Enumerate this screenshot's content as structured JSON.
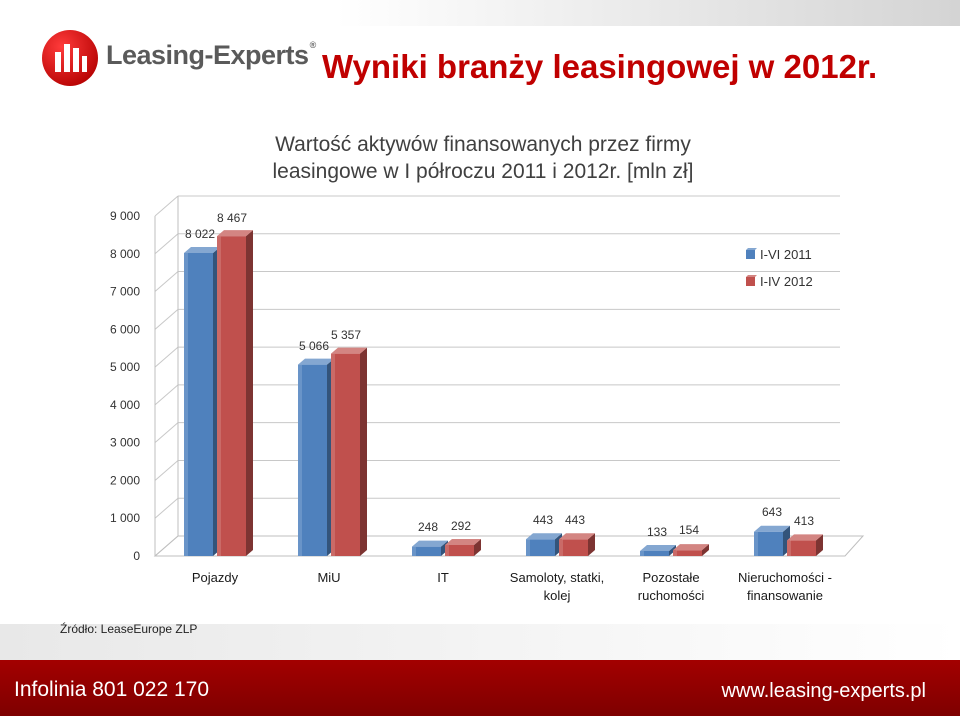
{
  "header": {
    "logo_text": "Leasing-Experts",
    "logo_reg": "®",
    "title": "Wyniki branży leasingowej w 2012r."
  },
  "chart_data": {
    "type": "bar",
    "title_lines": [
      "Wartość aktywów finansowanych przez firmy",
      "leasingowe w I półroczu 2011 i 2012r. [mln zł]"
    ],
    "categories": [
      [
        "Pojazdy"
      ],
      [
        "MiU"
      ],
      [
        "IT"
      ],
      [
        "Samoloty, statki,",
        "kolej"
      ],
      [
        "Pozostałe",
        "ruchomości"
      ],
      [
        "Nieruchomości -",
        "finansowanie"
      ]
    ],
    "series": [
      {
        "name": "I-VI 2011",
        "color": "#4f81bd",
        "values": [
          8022,
          5066,
          248,
          443,
          133,
          643
        ],
        "labels": [
          "8 022",
          "5 066",
          "248",
          "443",
          "133",
          "643"
        ]
      },
      {
        "name": "I-IV 2012",
        "color": "#c0504d",
        "values": [
          8467,
          5357,
          292,
          443,
          154,
          413
        ],
        "labels": [
          "8 467",
          "5 357",
          "292",
          "443",
          "154",
          "413"
        ]
      }
    ],
    "ylim": [
      0,
      9000
    ],
    "yticks": [
      0,
      1000,
      2000,
      3000,
      4000,
      5000,
      6000,
      7000,
      8000,
      9000
    ],
    "ytick_labels": [
      "0",
      "1 000",
      "2 000",
      "3 000",
      "4 000",
      "5 000",
      "6 000",
      "7 000",
      "8 000",
      "9 000"
    ],
    "grid": true,
    "legend": "top-right"
  },
  "source": "Źródło: LeaseEurope ZLP",
  "footer": {
    "left": "Infolinia 801 022 170",
    "right": "www.leasing-experts.pl"
  }
}
